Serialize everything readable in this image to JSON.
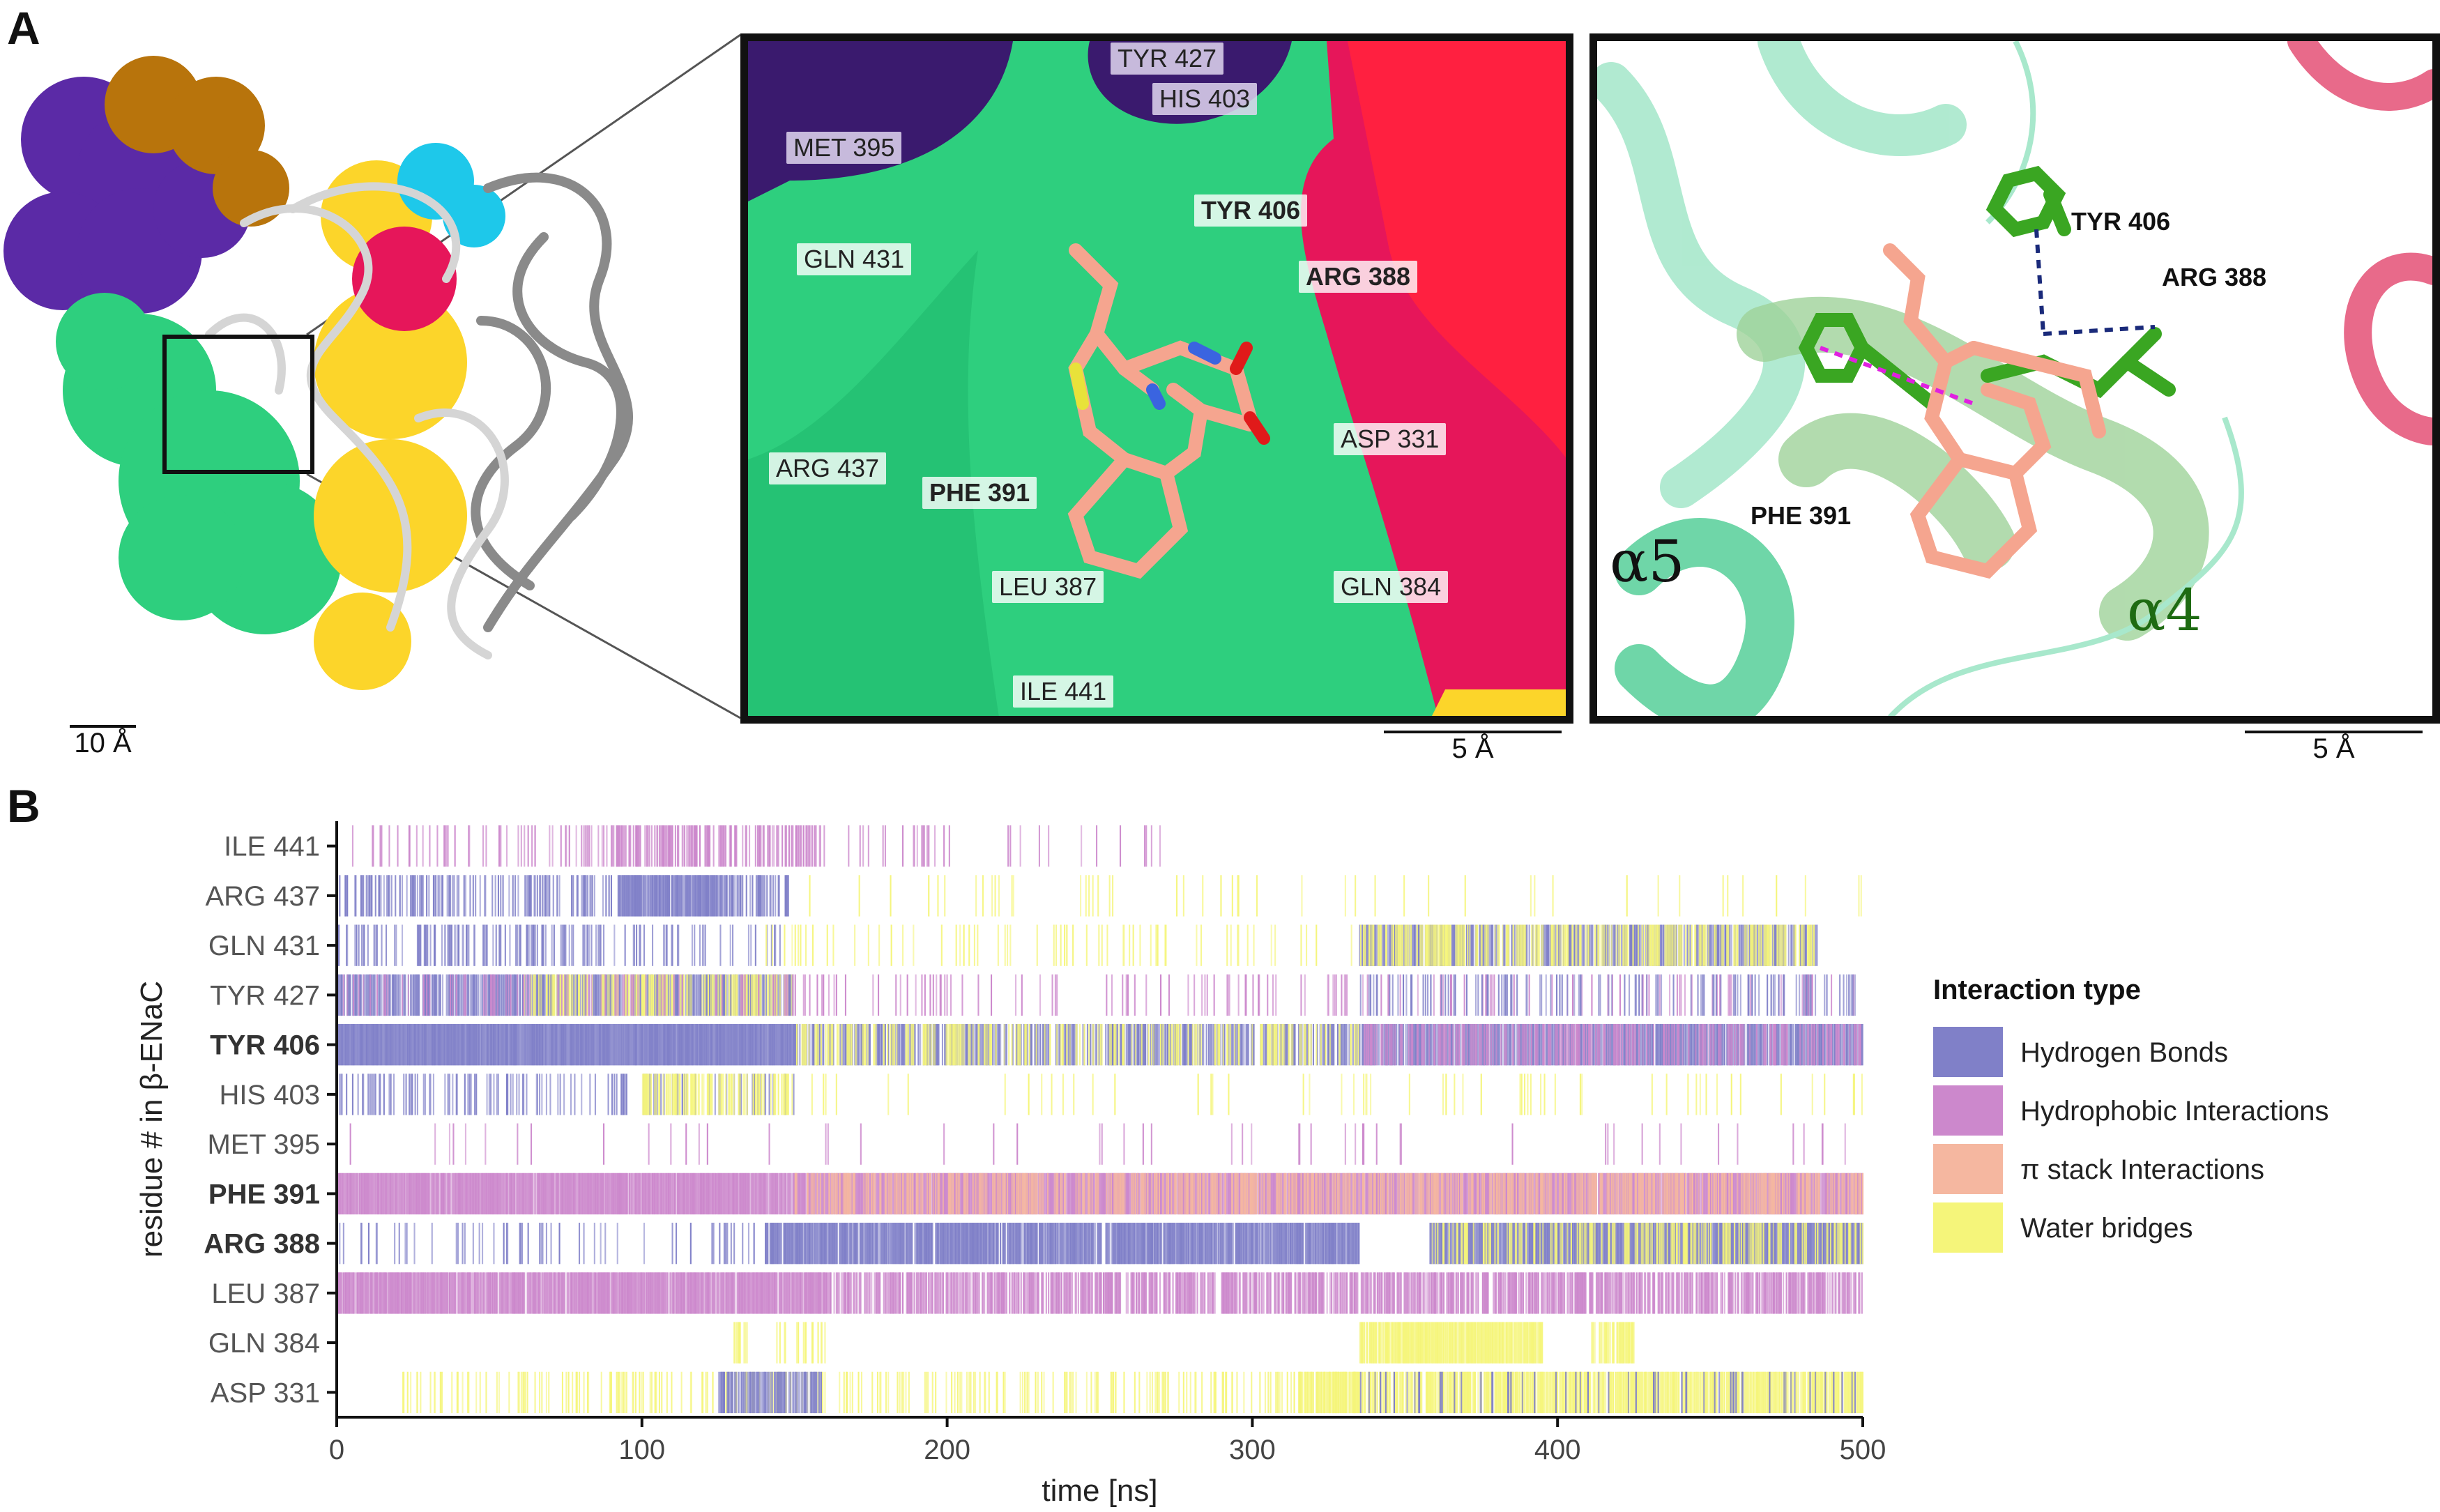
{
  "panel_a": {
    "letter": "A",
    "overview_scale": "10 Å",
    "inset1": {
      "scale": "5 Å",
      "labels": [
        {
          "text": "TYR 427",
          "bold": false,
          "dark": true
        },
        {
          "text": "HIS 403",
          "bold": false,
          "dark": true
        },
        {
          "text": "MET 395",
          "bold": false,
          "dark": true
        },
        {
          "text": "TYR 406",
          "bold": true,
          "dark": false
        },
        {
          "text": "GLN 431",
          "bold": false,
          "dark": false
        },
        {
          "text": "ARG 388",
          "bold": true,
          "dark": false
        },
        {
          "text": "ASP 331",
          "bold": false,
          "dark": false
        },
        {
          "text": "ARG 437",
          "bold": false,
          "dark": false
        },
        {
          "text": "PHE 391",
          "bold": true,
          "dark": false
        },
        {
          "text": "LEU 387",
          "bold": false,
          "dark": false
        },
        {
          "text": "GLN 384",
          "bold": false,
          "dark": false
        },
        {
          "text": "ILE 441",
          "bold": false,
          "dark": false
        }
      ]
    },
    "inset2": {
      "scale": "5 Å",
      "labels": [
        "TYR 406",
        "ARG 388",
        "PHE 391"
      ],
      "helix_a5": "α5",
      "helix_a4": "α4"
    },
    "colors": {
      "purple": "#5b2aa6",
      "orange": "#b8740c",
      "green": "#2ecf7e",
      "yellow": "#fcd52a",
      "cyan": "#1ec8ea",
      "crimson": "#e6165a",
      "grey": "#9a9a9a"
    }
  },
  "chart_data": {
    "type": "heatmap",
    "panel_letter": "B",
    "xlabel": "time [ns]",
    "ylabel": "residue # in β-ENaC",
    "xlim": [
      0,
      500
    ],
    "xticks": [
      "0",
      "100",
      "200",
      "300",
      "400",
      "500"
    ],
    "residues": [
      {
        "name": "ILE 441",
        "bold": false
      },
      {
        "name": "ARG 437",
        "bold": false
      },
      {
        "name": "GLN 431",
        "bold": false
      },
      {
        "name": "TYR 427",
        "bold": false
      },
      {
        "name": "TYR 406",
        "bold": true
      },
      {
        "name": "HIS 403",
        "bold": false
      },
      {
        "name": "MET 395",
        "bold": false
      },
      {
        "name": "PHE 391",
        "bold": true
      },
      {
        "name": "ARG 388",
        "bold": true
      },
      {
        "name": "LEU 387",
        "bold": false
      },
      {
        "name": "GLN 384",
        "bold": false
      },
      {
        "name": "ASP 331",
        "bold": false
      }
    ],
    "legend": {
      "title": "Interaction type",
      "entries": [
        {
          "name": "Hydrogen Bonds",
          "color": "#8080c8"
        },
        {
          "name": "Hydrophobic Interactions",
          "color": "#cc88cc"
        },
        {
          "name": "π stack Interactions",
          "color": "#f5b7a0"
        },
        {
          "name": "Water bridges",
          "color": "#f5f57a"
        }
      ]
    },
    "segments": [
      {
        "residue": "ILE 441",
        "type": "Hydrophobic Interactions",
        "start": 0,
        "end": 160,
        "density": 0.15
      },
      {
        "residue": "ILE 441",
        "type": "Hydrophobic Interactions",
        "start": 90,
        "end": 160,
        "density": 0.35
      },
      {
        "residue": "ILE 441",
        "type": "Hydrophobic Interactions",
        "start": 160,
        "end": 270,
        "density": 0.05
      },
      {
        "residue": "ARG 437",
        "type": "Hydrogen Bonds",
        "start": 0,
        "end": 90,
        "density": 0.3
      },
      {
        "residue": "ARG 437",
        "type": "Hydrogen Bonds",
        "start": 92,
        "end": 127,
        "density": 0.9
      },
      {
        "residue": "ARG 437",
        "type": "Hydrogen Bonds",
        "start": 127,
        "end": 148,
        "density": 0.45
      },
      {
        "residue": "ARG 437",
        "type": "Water bridges",
        "start": 150,
        "end": 500,
        "density": 0.04
      },
      {
        "residue": "GLN 431",
        "type": "Hydrogen Bonds",
        "start": 0,
        "end": 90,
        "density": 0.25
      },
      {
        "residue": "GLN 431",
        "type": "Hydrogen Bonds",
        "start": 90,
        "end": 150,
        "density": 0.12
      },
      {
        "residue": "GLN 431",
        "type": "Water bridges",
        "start": 140,
        "end": 335,
        "density": 0.06
      },
      {
        "residue": "GLN 431",
        "type": "Hydrogen Bonds",
        "start": 335,
        "end": 485,
        "density": 0.6
      },
      {
        "residue": "GLN 431",
        "type": "Water bridges",
        "start": 335,
        "end": 485,
        "density": 0.35
      },
      {
        "residue": "TYR 427",
        "type": "Hydrogen Bonds",
        "start": 0,
        "end": 150,
        "density": 0.65
      },
      {
        "residue": "TYR 427",
        "type": "Water bridges",
        "start": 60,
        "end": 150,
        "density": 0.35
      },
      {
        "residue": "TYR 427",
        "type": "Hydrophobic Interactions",
        "start": 0,
        "end": 500,
        "density": 0.1
      },
      {
        "residue": "TYR 427",
        "type": "Hydrogen Bonds",
        "start": 335,
        "end": 500,
        "density": 0.15
      },
      {
        "residue": "TYR 406",
        "type": "Hydrogen Bonds",
        "start": 0,
        "end": 150,
        "density": 1.0
      },
      {
        "residue": "TYR 406",
        "type": "Hydrogen Bonds",
        "start": 150,
        "end": 335,
        "density": 0.5
      },
      {
        "residue": "TYR 406",
        "type": "Water bridges",
        "start": 150,
        "end": 335,
        "density": 0.25
      },
      {
        "residue": "TYR 406",
        "type": "Hydrogen Bonds",
        "start": 335,
        "end": 500,
        "density": 0.7
      },
      {
        "residue": "TYR 406",
        "type": "Hydrophobic Interactions",
        "start": 335,
        "end": 500,
        "density": 0.3
      },
      {
        "residue": "HIS 403",
        "type": "Hydrogen Bonds",
        "start": 0,
        "end": 150,
        "density": 0.2
      },
      {
        "residue": "HIS 403",
        "type": "Water bridges",
        "start": 100,
        "end": 150,
        "density": 0.45
      },
      {
        "residue": "HIS 403",
        "type": "Water bridges",
        "start": 150,
        "end": 500,
        "density": 0.03
      },
      {
        "residue": "MET 395",
        "type": "Hydrophobic Interactions",
        "start": 0,
        "end": 500,
        "density": 0.02
      },
      {
        "residue": "PHE 391",
        "type": "Hydrophobic Interactions",
        "start": 0,
        "end": 500,
        "density": 0.95
      },
      {
        "residue": "PHE 391",
        "type": "π stack Interactions",
        "start": 150,
        "end": 500,
        "density": 0.4
      },
      {
        "residue": "ARG 388",
        "type": "Hydrogen Bonds",
        "start": 0,
        "end": 140,
        "density": 0.08
      },
      {
        "residue": "ARG 388",
        "type": "Hydrogen Bonds",
        "start": 140,
        "end": 335,
        "density": 0.85
      },
      {
        "residue": "ARG 388",
        "type": "Hydrogen Bonds",
        "start": 358,
        "end": 500,
        "density": 0.95
      },
      {
        "residue": "ARG 388",
        "type": "Water bridges",
        "start": 358,
        "end": 500,
        "density": 0.3
      },
      {
        "residue": "LEU 387",
        "type": "Hydrophobic Interactions",
        "start": 0,
        "end": 160,
        "density": 0.9
      },
      {
        "residue": "LEU 387",
        "type": "Hydrophobic Interactions",
        "start": 160,
        "end": 500,
        "density": 0.6
      },
      {
        "residue": "GLN 384",
        "type": "Water bridges",
        "start": 130,
        "end": 160,
        "density": 0.15
      },
      {
        "residue": "GLN 384",
        "type": "Water bridges",
        "start": 335,
        "end": 395,
        "density": 0.85
      },
      {
        "residue": "GLN 384",
        "type": "Water bridges",
        "start": 410,
        "end": 425,
        "density": 0.6
      },
      {
        "residue": "ASP 331",
        "type": "Water bridges",
        "start": 20,
        "end": 335,
        "density": 0.2
      },
      {
        "residue": "ASP 331",
        "type": "Hydrogen Bonds",
        "start": 125,
        "end": 160,
        "density": 0.55
      },
      {
        "residue": "ASP 331",
        "type": "Water bridges",
        "start": 315,
        "end": 500,
        "density": 0.7
      },
      {
        "residue": "ASP 331",
        "type": "Hydrogen Bonds",
        "start": 335,
        "end": 500,
        "density": 0.12
      }
    ]
  }
}
